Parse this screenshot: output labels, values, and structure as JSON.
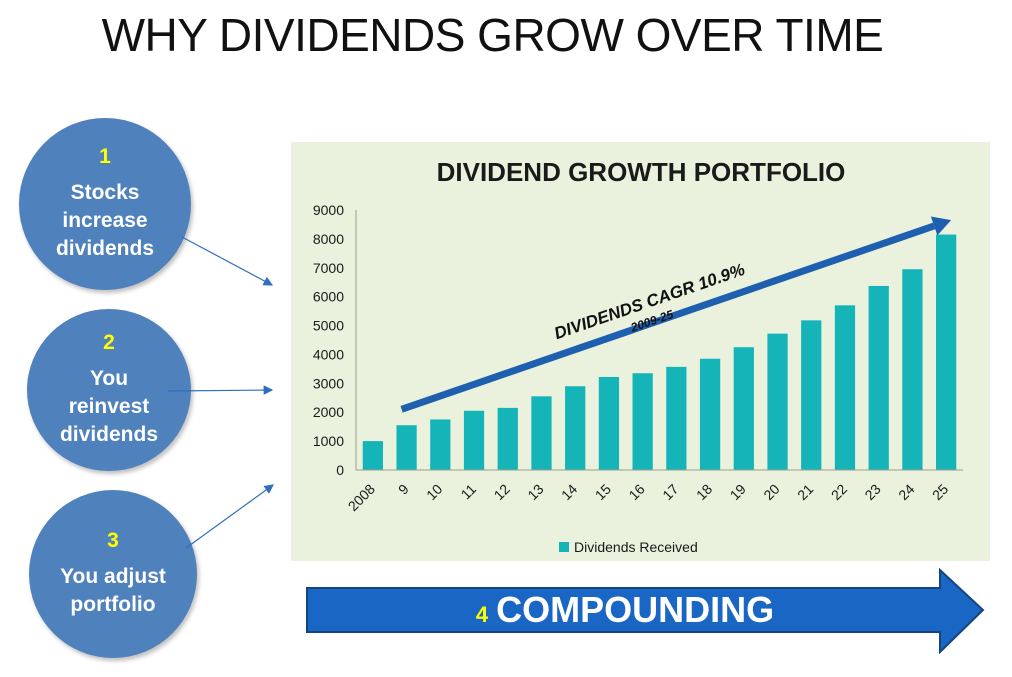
{
  "slide": {
    "title": "WHY DIVIDENDS GROW OVER TIME"
  },
  "steps": [
    {
      "number": "1",
      "text": "Stocks\nincrease\ndividends"
    },
    {
      "number": "2",
      "text": "You\nreinvest\ndividends"
    },
    {
      "number": "3",
      "text": "You adjust\nportfolio"
    }
  ],
  "banner": {
    "number": "4",
    "label": "COMPOUNDING"
  },
  "colors": {
    "circle": "#4f81bd",
    "bar": "#14b4b8",
    "trend": "#1f5fb0",
    "panel": "#eaf1dd",
    "banner": "#1a66c4"
  },
  "chart_data": {
    "type": "bar",
    "title": "DIVIDEND GROWTH PORTFOLIO",
    "categories": [
      "2008",
      "9",
      "10",
      "11",
      "12",
      "13",
      "14",
      "15",
      "16",
      "17",
      "18",
      "19",
      "20",
      "21",
      "22",
      "23",
      "24",
      "25"
    ],
    "series": [
      {
        "name": "Dividends Received",
        "values": [
          1000,
          1550,
          1750,
          2050,
          2150,
          2550,
          2900,
          3220,
          3350,
          3570,
          3850,
          4250,
          4720,
          5180,
          5700,
          6370,
          6950,
          8150
        ]
      }
    ],
    "ylim": [
      0,
      9000
    ],
    "yticks": [
      0,
      1000,
      2000,
      3000,
      4000,
      5000,
      6000,
      7000,
      8000,
      9000
    ],
    "xlabel": "",
    "ylabel": "",
    "legend": "bottom",
    "grid": false,
    "annotation": {
      "main": "DIVIDENDS CAGR 10.9%",
      "sub": "2009-25"
    }
  }
}
